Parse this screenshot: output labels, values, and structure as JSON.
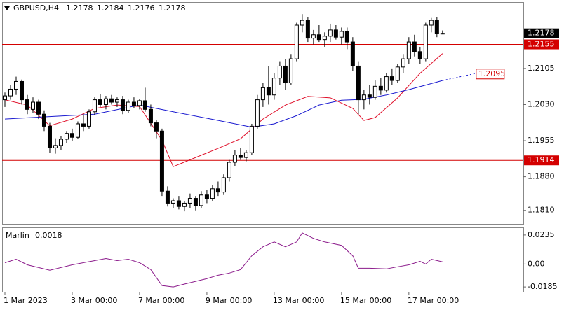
{
  "chart_data": [
    {
      "type": "candlestick",
      "symbol": "GBPUSD,H4",
      "open": [
        1.204,
        1.2048,
        1.2062,
        1.2078,
        1.204,
        1.202,
        1.2035,
        1.201,
        1.1985,
        1.194,
        1.1945,
        1.1958,
        1.197,
        1.1962,
        1.199,
        1.1985,
        1.2015,
        1.204,
        1.203,
        1.2042,
        1.2035,
        1.204,
        1.2018,
        1.2035,
        1.2028,
        1.2038,
        1.202,
        1.1992,
        1.1975,
        1.185,
        1.1825,
        1.183,
        1.1818,
        1.1825,
        1.1835,
        1.182,
        1.1842,
        1.1835,
        1.1855,
        1.1848,
        1.1878,
        1.191,
        1.1925,
        1.192,
        1.193,
        1.1985,
        1.204,
        1.2065,
        1.205,
        1.2085,
        1.211,
        1.2075,
        1.2125,
        1.2195,
        1.2205,
        1.2168,
        1.2175,
        1.2165,
        1.2172,
        1.2185,
        1.217,
        1.2182,
        1.216,
        1.211,
        1.204,
        1.205,
        1.2045,
        1.2068,
        1.206,
        1.2088,
        1.208,
        1.2108,
        1.2125,
        1.216,
        1.214,
        1.2125,
        1.2195,
        1.2205,
        1.2178
      ],
      "high": [
        1.2055,
        1.207,
        1.2088,
        1.2082,
        1.205,
        1.2045,
        1.204,
        1.2018,
        1.1992,
        1.196,
        1.1965,
        1.1975,
        1.198,
        1.1995,
        1.201,
        1.202,
        1.2045,
        1.2052,
        1.2048,
        1.205,
        1.2045,
        1.2048,
        1.204,
        1.2045,
        1.2042,
        1.2065,
        1.203,
        1.1998,
        1.198,
        1.186,
        1.1835,
        1.184,
        1.183,
        1.1845,
        1.184,
        1.185,
        1.1852,
        1.1862,
        1.187,
        1.1885,
        1.1915,
        1.1935,
        1.194,
        1.1935,
        1.199,
        1.205,
        1.2075,
        1.211,
        1.2095,
        1.212,
        1.2125,
        1.2135,
        1.22,
        1.2218,
        1.2212,
        1.2185,
        1.2195,
        1.218,
        1.2198,
        1.2195,
        1.219,
        1.219,
        1.217,
        1.212,
        1.206,
        1.207,
        1.208,
        1.2085,
        1.2095,
        1.2105,
        1.2115,
        1.2135,
        1.217,
        1.2175,
        1.215,
        1.22,
        1.221,
        1.2212,
        1.2184
      ],
      "low": [
        1.2025,
        1.204,
        1.205,
        1.203,
        1.201,
        1.2012,
        1.2,
        1.1975,
        1.193,
        1.1928,
        1.1935,
        1.195,
        1.1955,
        1.1958,
        1.1975,
        1.198,
        1.2008,
        1.2025,
        1.202,
        1.203,
        1.2025,
        1.201,
        1.2012,
        1.2022,
        1.202,
        1.2015,
        1.1985,
        1.196,
        1.184,
        1.1818,
        1.1815,
        1.1812,
        1.1808,
        1.1815,
        1.181,
        1.1815,
        1.1825,
        1.183,
        1.184,
        1.1842,
        1.187,
        1.1902,
        1.1915,
        1.1912,
        1.1925,
        1.198,
        1.2025,
        1.203,
        1.204,
        1.207,
        1.206,
        1.207,
        1.212,
        1.218,
        1.216,
        1.2155,
        1.216,
        1.215,
        1.216,
        1.2165,
        1.2155,
        1.2145,
        1.21,
        1.201,
        1.202,
        1.203,
        1.204,
        1.205,
        1.2055,
        1.207,
        1.2075,
        1.2095,
        1.2115,
        1.213,
        1.2115,
        1.212,
        1.218,
        1.217,
        1.2176
      ],
      "close": [
        1.2048,
        1.2062,
        1.2078,
        1.204,
        1.202,
        1.2035,
        1.201,
        1.1985,
        1.194,
        1.1945,
        1.1958,
        1.197,
        1.1962,
        1.199,
        1.1985,
        1.2015,
        1.204,
        1.203,
        1.2042,
        1.2035,
        1.204,
        1.2018,
        1.2035,
        1.2028,
        1.2038,
        1.202,
        1.1992,
        1.1975,
        1.185,
        1.1825,
        1.183,
        1.1818,
        1.1825,
        1.1835,
        1.182,
        1.1842,
        1.1835,
        1.1855,
        1.1848,
        1.1878,
        1.191,
        1.1925,
        1.192,
        1.193,
        1.1985,
        1.204,
        1.2065,
        1.205,
        1.2085,
        1.211,
        1.2075,
        1.2125,
        1.2195,
        1.2205,
        1.2168,
        1.2175,
        1.2165,
        1.2172,
        1.2185,
        1.217,
        1.2182,
        1.216,
        1.211,
        1.204,
        1.205,
        1.2045,
        1.2068,
        1.206,
        1.2088,
        1.208,
        1.2108,
        1.2125,
        1.216,
        1.214,
        1.2125,
        1.2195,
        1.2205,
        1.2178,
        1.2178
      ],
      "series": [
        {
          "color": "#e0102a",
          "x": [
            0,
            4,
            8,
            12,
            16,
            20,
            24,
            28,
            30,
            34,
            38,
            42,
            46,
            50,
            54,
            58,
            62,
            64,
            66,
            70,
            74,
            78
          ],
          "values": [
            1.204,
            1.2029,
            1.1986,
            1.2,
            1.2022,
            1.2029,
            1.2026,
            1.1956,
            1.1901,
            1.192,
            1.1939,
            1.1959,
            1.2,
            1.2029,
            1.2047,
            1.2044,
            1.2022,
            1.1997,
            1.2003,
            1.2044,
            1.2095,
            1.2136
          ]
        },
        {
          "color": "#1a1ad0",
          "x": [
            0,
            8,
            16,
            24,
            30,
            38,
            44,
            48,
            52,
            56,
            60,
            64,
            68,
            72,
            78
          ],
          "values": [
            1.2,
            1.2005,
            1.201,
            1.2029,
            1.2015,
            1.1997,
            1.1983,
            1.199,
            1.2007,
            1.2029,
            1.2039,
            1.2041,
            1.205,
            1.2061,
            1.208
          ]
        },
        {
          "color": "#1a1ad0",
          "dashed": true,
          "x": [
            78,
            84
          ],
          "values": [
            1.208,
            1.2095
          ]
        }
      ],
      "levels": [
        1.2155,
        1.1914
      ],
      "level_color": "#d40000",
      "candle_up": "#ffffff",
      "candle_down": "#000000",
      "xlim": [
        -0.5,
        92.4
      ],
      "ylim": [
        1.1782,
        1.2243
      ],
      "yticks": [
        1.2105,
        {
          "value": 1.203,
          "label": "1.2030"
        },
        1.1955,
        {
          "value": 1.188,
          "label": "1.1880"
        },
        {
          "value": 1.181,
          "label": "1.1810"
        }
      ],
      "xticks": [
        {
          "value": 0,
          "label": "1 Mar 2023"
        },
        {
          "value": 12,
          "label": "3 Mar 00:00"
        },
        {
          "value": 24,
          "label": "7 Mar 00:00"
        },
        {
          "value": 36,
          "label": "9 Mar 00:00"
        },
        {
          "value": 48,
          "label": "13 Mar 00:00"
        },
        {
          "value": 60,
          "label": "15 Mar 00:00"
        },
        {
          "value": 72,
          "label": "17 Mar 00:00"
        }
      ]
    },
    {
      "type": "line",
      "series": [
        {
          "name": "Marlin",
          "color": "#8b1a8b",
          "x": [
            0,
            2,
            4,
            8,
            12,
            16,
            18,
            20,
            22,
            24,
            26,
            28,
            30,
            32,
            34,
            36,
            38,
            40,
            42,
            44,
            46,
            48,
            50,
            52,
            53,
            55,
            57,
            60,
            62,
            63,
            65,
            68,
            70,
            72,
            74,
            75,
            76,
            78
          ],
          "values": [
            0.0011,
            0.0039,
            -0.0006,
            -0.005,
            -0.0006,
            0.0028,
            0.0045,
            0.0028,
            0.0039,
            0.0011,
            -0.0045,
            -0.0174,
            -0.0185,
            -0.0162,
            -0.014,
            -0.0118,
            -0.009,
            -0.0073,
            -0.0045,
            0.0067,
            0.014,
            0.0179,
            0.014,
            0.0179,
            0.0252,
            0.0207,
            0.0179,
            0.0151,
            0.0067,
            -0.0034,
            -0.0034,
            -0.0039,
            -0.0022,
            -0.0006,
            0.0022,
            0,
            0.0039,
            0.0018
          ]
        }
      ],
      "ylim": [
        -0.0224,
        0.0291
      ],
      "yticks": [
        0.0235,
        {
          "value": 0,
          "label": "0.00"
        },
        -0.0185
      ]
    }
  ]
}
